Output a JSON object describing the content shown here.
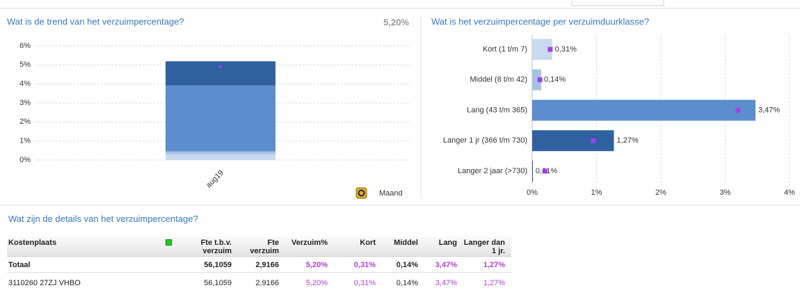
{
  "chart_data": [
    {
      "type": "stacked-bar",
      "title": "Wat is de trend van het verzuimpercentage?",
      "summary": "5,20%",
      "categories": [
        "aug19"
      ],
      "series": [
        {
          "color": "#c9d9ef",
          "values": [
            0.31
          ]
        },
        {
          "color": "#a7c2e6",
          "values": [
            0.14
          ]
        },
        {
          "color": "#5b8dcf",
          "values": [
            3.47
          ]
        },
        {
          "color": "#2f60a0",
          "values": [
            1.27
          ]
        }
      ],
      "markers": {
        "color": "#a040e8",
        "values": [
          4.9
        ]
      },
      "ylim": [
        0,
        6
      ],
      "yticks": [
        {
          "value": 0,
          "label": "0%"
        },
        {
          "value": 1,
          "label": "1%"
        },
        {
          "value": 2,
          "label": "2%"
        },
        {
          "value": 3,
          "label": "3%"
        },
        {
          "value": 4,
          "label": "4%"
        },
        {
          "value": 5,
          "label": "5%"
        },
        {
          "value": 6,
          "label": "6%"
        }
      ],
      "grid": true,
      "period_label": "Maand"
    },
    {
      "type": "barh",
      "title": "Wat is het verzuimpercentage per verzuimduurklasse?",
      "categories": [
        "Kort (1 t/m 7)",
        "Middel (8 t/m 42)",
        "Lang (43 t/m 365)",
        "Langer 1 jr (366 t/m 730)",
        "Langer 2 jaar (>730)"
      ],
      "values": [
        0.31,
        0.14,
        3.47,
        1.27,
        0.01
      ],
      "value_labels": [
        "0,31%",
        "0,14%",
        "3,47%",
        "1,27%",
        "0,01%"
      ],
      "colors": [
        "#c9d9ef",
        "#a7c2e6",
        "#5b8dcf",
        "#2f60a0",
        "#1f4a80"
      ],
      "markers": {
        "color": "#a040e8",
        "values": [
          0.28,
          0.12,
          3.2,
          0.95,
          0.2
        ]
      },
      "xlim": [
        0,
        4
      ],
      "xticks": [
        {
          "value": 0,
          "label": "0%"
        },
        {
          "value": 1,
          "label": "1%"
        },
        {
          "value": 2,
          "label": "2%"
        },
        {
          "value": 3,
          "label": "3%"
        },
        {
          "value": 4,
          "label": "4%"
        }
      ],
      "grid": true
    }
  ],
  "table": {
    "title": "Wat zijn de details van het verzuimpercentage?",
    "columns": [
      "Kostenplaats",
      "Fte t.b.v. verzuim",
      "Fte verzuim",
      "Verzuim%",
      "Kort",
      "Middel",
      "Lang",
      "Langer dan 1 jr."
    ],
    "rows": [
      [
        "Totaal",
        "56,1059",
        "2,9166",
        "5,20%",
        "0,31%",
        "0,14%",
        "3,47%",
        "1,27%"
      ],
      [
        "3110260 27ZJ VHBO",
        "56,1059",
        "2,9166",
        "5,20%",
        "0,31%",
        "0,14%",
        "3,47%",
        "1,27%"
      ]
    ],
    "highlight_columns": [
      3,
      4,
      6,
      7
    ],
    "highlight_color": "#b03ce0"
  }
}
